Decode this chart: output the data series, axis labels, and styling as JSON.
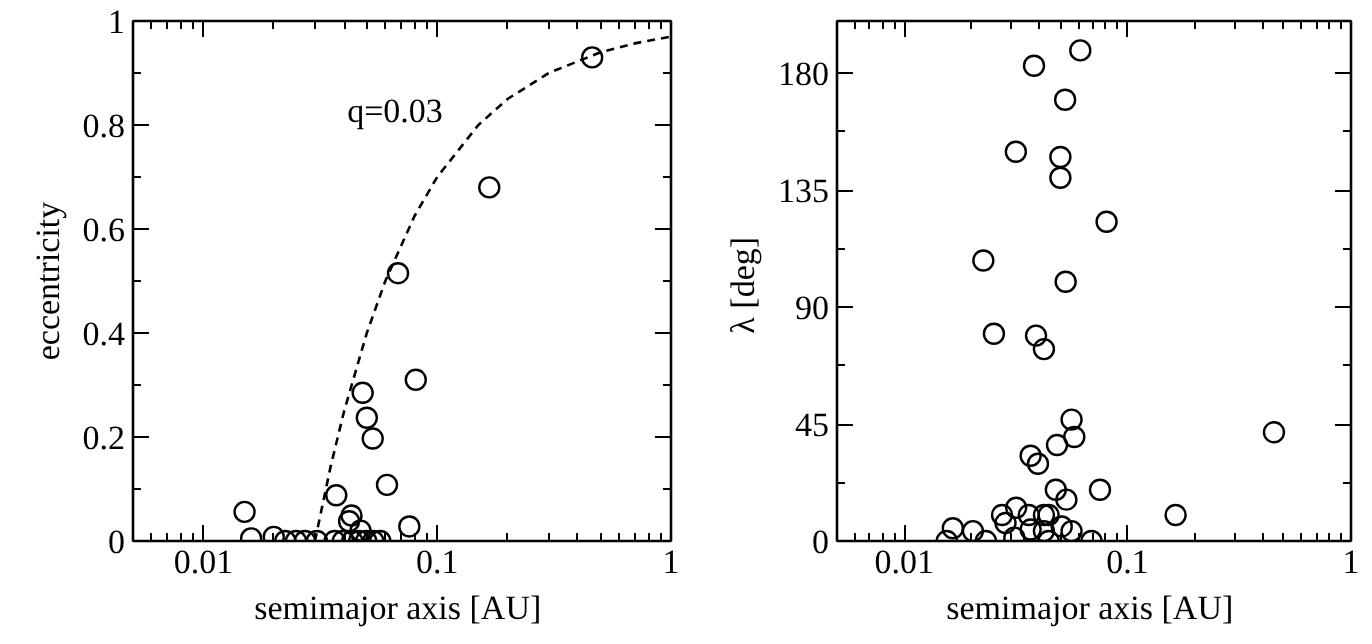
{
  "chart_data": [
    {
      "type": "scatter",
      "xlabel": "semimajor axis  [AU]",
      "ylabel": "eccentricity",
      "log": "x",
      "xlim": [
        0.005,
        1
      ],
      "xticks": [
        0.01,
        0.1,
        1
      ],
      "ylim": [
        0,
        1
      ],
      "yticks": [
        0,
        0.2,
        0.4,
        0.6,
        0.8,
        1
      ],
      "marker": "circle",
      "annotations": [
        "q=0.03"
      ],
      "series": [
        {
          "color": "#000000",
          "x": [
            0.46,
            0.167,
            0.068,
            0.081,
            0.048,
            0.05,
            0.053,
            0.061,
            0.037,
            0.015,
            0.076,
            0.043,
            0.042,
            0.047,
            0.016,
            0.02,
            0.0224,
            0.0249,
            0.0272,
            0.0306,
            0.0364,
            0.0395,
            0.0433,
            0.0464,
            0.0497,
            0.0533,
            0.0571
          ],
          "values": [
            0.93,
            0.68,
            0.515,
            0.31,
            0.285,
            0.237,
            0.197,
            0.108,
            0.088,
            0.056,
            0.028,
            0.049,
            0.038,
            0.02,
            0.005,
            0.008,
            0,
            0,
            0,
            0,
            0,
            0,
            0,
            0,
            0,
            0,
            0
          ]
        },
        {
          "type": "line",
          "line_style": "dashed",
          "marker": "none",
          "color": "#000000",
          "x": [
            0.03,
            0.035,
            0.04,
            0.05,
            0.06,
            0.08,
            0.1,
            0.15,
            0.2,
            0.3,
            0.5,
            0.7,
            1
          ],
          "values": [
            0,
            0.143,
            0.25,
            0.4,
            0.5,
            0.625,
            0.7,
            0.8,
            0.85,
            0.9,
            0.94,
            0.957,
            0.97
          ]
        }
      ]
    },
    {
      "type": "scatter",
      "xlabel": "semimajor axis  [AU]",
      "ylabel": "λ  [deg]",
      "log": "x",
      "xlim": [
        0.005,
        1
      ],
      "xticks": [
        0.01,
        0.1,
        1
      ],
      "ylim": [
        0,
        200
      ],
      "yticks": [
        0,
        45,
        90,
        135,
        180
      ],
      "marker": "circle",
      "series": [
        {
          "color": "#000000",
          "x": [
            0.0614,
            0.0381,
            0.0525,
            0.0316,
            0.05,
            0.05,
            0.0805,
            0.0226,
            0.0528,
            0.0252,
            0.0389,
            0.0422,
            0.0561,
            0.0577,
            0.0483,
            0.452,
            0.0368,
            0.0397,
            0.0477,
            0.0532,
            0.0752,
            0.164,
            0.0274,
            0.0317,
            0.0284,
            0.0361,
            0.0422,
            0.0443,
            0.0165,
            0.0203,
            0.0155,
            0.0232,
            0.0311,
            0.0368,
            0.0422,
            0.0443,
            0.0507,
            0.0561,
            0.0689
          ],
          "values": [
            188.7,
            182.8,
            169.7,
            149.7,
            147.7,
            139.7,
            122.8,
            107.9,
            99.7,
            79.7,
            79.0,
            73.8,
            46.7,
            40.0,
            36.9,
            41.8,
            32.8,
            29.7,
            19.7,
            15.9,
            19.7,
            10.0,
            10.0,
            12.8,
            6.9,
            10.0,
            10.0,
            10.0,
            4.9,
            3.8,
            0,
            0,
            1.3,
            4.4,
            3.8,
            0,
            5.6,
            3.8,
            0
          ]
        }
      ]
    }
  ]
}
